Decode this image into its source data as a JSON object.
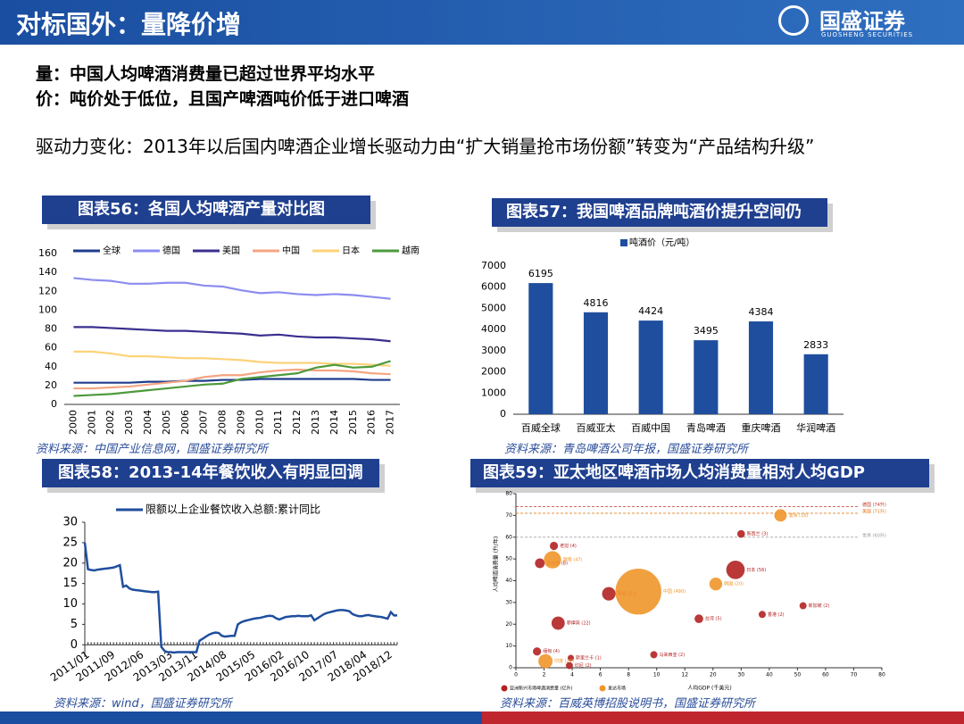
{
  "header": {
    "title": "对标国外：量降价增",
    "logo": "国盛证券",
    "logo_en": "GUOSHENG SECURITIES"
  },
  "points": [
    "量：中国人均啤酒消费量已超过世界平均水平",
    "价：吨价处于低位，且国产啤酒吨价低于进口啤酒",
    "驱动力变化：2013年以后国内啤酒企业增长驱动力由“扩大销量抢市场份额”转变为“产品结构升级”"
  ],
  "chart_data": [
    {
      "type": "line",
      "title": "图表56：各国人均啤酒产量对比图",
      "source": "资料来源：中国产业信息网，国盛证券研究所",
      "categories": [
        "2000",
        "2001",
        "2002",
        "2003",
        "2004",
        "2005",
        "2006",
        "2007",
        "2008",
        "2009",
        "2010",
        "2011",
        "2012",
        "2013",
        "2014",
        "2015",
        "2016",
        "2017"
      ],
      "ylim": [
        0,
        160
      ],
      "yticks": [
        0,
        20,
        40,
        60,
        80,
        100,
        120,
        140,
        160
      ],
      "series": [
        {
          "name": "全球",
          "color": "#1f3d8c",
          "values": [
            23,
            23,
            23,
            23,
            24,
            24,
            25,
            25,
            26,
            26,
            27,
            27,
            27,
            27,
            27,
            27,
            26,
            26
          ]
        },
        {
          "name": "德国",
          "color": "#8c8cf0",
          "values": [
            134,
            132,
            131,
            128,
            128,
            129,
            129,
            126,
            125,
            121,
            118,
            119,
            117,
            116,
            117,
            116,
            114,
            112
          ]
        },
        {
          "name": "美国",
          "color": "#3a2f8f",
          "values": [
            82,
            82,
            81,
            80,
            79,
            78,
            78,
            77,
            76,
            75,
            73,
            74,
            72,
            71,
            71,
            70,
            69,
            67
          ]
        },
        {
          "name": "中国",
          "color": "#f4a582",
          "values": [
            17,
            17,
            18,
            19,
            21,
            23,
            25,
            29,
            31,
            31,
            34,
            36,
            37,
            36,
            36,
            35,
            33,
            32
          ]
        },
        {
          "name": "日本",
          "color": "#fdd27a",
          "values": [
            56,
            56,
            54,
            51,
            51,
            50,
            49,
            49,
            48,
            47,
            45,
            44,
            44,
            44,
            43,
            43,
            42,
            41
          ]
        },
        {
          "name": "越南",
          "color": "#4d9a3c",
          "values": [
            9,
            10,
            11,
            13,
            15,
            17,
            19,
            21,
            22,
            27,
            29,
            31,
            33,
            39,
            42,
            39,
            40,
            46
          ]
        }
      ]
    },
    {
      "type": "bar",
      "title": "图表57：我国啤酒品牌吨酒价提升空间仍",
      "source": "资料来源：青岛啤酒公司年报，国盛证券研究所",
      "categories": [
        "百威全球",
        "百威亚太",
        "百威中国",
        "青岛啤酒",
        "重庆啤酒",
        "华润啤酒"
      ],
      "series": [
        {
          "name": "吨酒价（元/吨）",
          "color": "#1f4e9e",
          "values": [
            6195,
            4816,
            4424,
            3495,
            4384,
            2833
          ]
        }
      ],
      "ylim": [
        0,
        7000
      ],
      "yticks": [
        0,
        1000,
        2000,
        3000,
        4000,
        5000,
        6000,
        7000
      ]
    },
    {
      "type": "line",
      "title": "图表58：2013-14年餐饮收入有明显回调",
      "source": "资料来源：wind，国盛证券研究所",
      "categories": [
        "2011/01",
        null,
        null,
        null,
        null,
        null,
        null,
        null,
        "2011/09",
        null,
        null,
        null,
        null,
        null,
        null,
        null,
        null,
        "2012/06",
        null,
        null,
        null,
        null,
        null,
        null,
        null,
        null,
        "2013/03",
        null,
        null,
        null,
        null,
        null,
        null,
        null,
        "2013/11",
        null,
        null,
        null,
        null,
        null,
        null,
        null,
        null,
        "2014/08",
        null,
        null,
        null,
        null,
        null,
        null,
        null,
        null,
        "2015/05",
        null,
        null,
        null,
        null,
        null,
        null,
        null,
        null,
        "2016/02",
        null,
        null,
        null,
        null,
        null,
        null,
        null,
        "2016/10",
        null,
        null,
        null,
        null,
        null,
        null,
        null,
        null,
        "2017/07",
        null,
        null,
        null,
        null,
        null,
        null,
        null,
        null,
        "2018/04",
        null,
        null,
        null,
        null,
        null,
        null,
        null,
        "2018/12",
        null,
        null,
        null
      ],
      "ylim": [
        -3,
        30
      ],
      "yticks": [
        0,
        5,
        10,
        15,
        20,
        25,
        30
      ],
      "series": [
        {
          "name": "限额以上企业餐饮收入总额:累计同比",
          "color": "#1f4e9e",
          "values": [
            25,
            18.5,
            18.3,
            18.2,
            18.4,
            18.5,
            18.6,
            18.7,
            18.8,
            18.9,
            19.2,
            19.5,
            14.2,
            14.5,
            13.8,
            13.5,
            13.4,
            13.3,
            13.2,
            13.1,
            13.0,
            12.9,
            12.9,
            13.0,
            -0.5,
            -1.5,
            -1.8,
            -1.8,
            -1.9,
            -1.8,
            -1.8,
            -1.8,
            -1.8,
            -1.8,
            -1.8,
            -1.8,
            1.0,
            1.5,
            2.0,
            2.5,
            2.8,
            3.0,
            2.9,
            2.2,
            2.0,
            2.1,
            2.2,
            2.2,
            5.0,
            5.5,
            5.8,
            6.0,
            6.2,
            6.4,
            6.5,
            6.6,
            6.8,
            7.0,
            7.1,
            7.0,
            6.5,
            6.2,
            6.5,
            6.8,
            6.9,
            7.0,
            7.0,
            7.1,
            7.0,
            7.0,
            7.0,
            7.2,
            6.0,
            6.5,
            7.0,
            7.5,
            7.8,
            8.0,
            8.2,
            8.4,
            8.5,
            8.5,
            8.4,
            8.2,
            7.5,
            7.2,
            7.0,
            7.0,
            7.2,
            7.3,
            7.1,
            7.0,
            6.9,
            6.8,
            6.6,
            6.4,
            8.0,
            7.2,
            7.2
          ]
        }
      ]
    },
    {
      "type": "bubble",
      "title": "图表59：亚太地区啤酒市场人均消费量相对人均GDP",
      "source": "资料来源：百威英博招股说明书，国盛证券研究所",
      "x_label": "人均GDP (千美元)",
      "y_label": "人均啤酒消费量 (升/年)",
      "xlim": [
        0,
        80
      ],
      "xticks": [
        0,
        2,
        4,
        6,
        8,
        10,
        12,
        20,
        30,
        40,
        50,
        60,
        70,
        80
      ],
      "ylim": [
        0,
        80
      ],
      "yticks": [
        0,
        10,
        20,
        30,
        40,
        50,
        60,
        70,
        80
      ],
      "ref_lines": [
        {
          "label": "德国 (74升)",
          "value": 74,
          "color": "#c0392b"
        },
        {
          "label": "美国 (71升)",
          "value": 71,
          "color": "#e67e22"
        },
        {
          "label": "世界 (60升)",
          "value": 60,
          "color": "#999999"
        }
      ],
      "series": [
        {
          "name": "亚洲新兴市场啤酒消费量 (亿升)",
          "color": "#b22222",
          "points": [
            {
              "label": "柬埔寨 (8)",
              "x": 1.7,
              "y": 48,
              "size": 8
            },
            {
              "label": "老挝 (4)",
              "x": 2.7,
              "y": 56,
              "size": 4
            },
            {
              "label": "菲律宾 (22)",
              "x": 3.0,
              "y": 20.5,
              "size": 22
            },
            {
              "label": "泰国 (23)",
              "x": 6.6,
              "y": 34,
              "size": 23
            },
            {
              "label": "日本 (56)",
              "x": 28,
              "y": 45,
              "size": 56
            },
            {
              "label": "新西兰 (3)",
              "x": 30,
              "y": 61.5,
              "size": 3
            },
            {
              "label": "台湾 (5)",
              "x": 16,
              "y": 22.5,
              "size": 5
            },
            {
              "label": "香港 (2)",
              "x": 37.5,
              "y": 24.5,
              "size": 2
            },
            {
              "label": "新加坡 (2)",
              "x": 52,
              "y": 28.5,
              "size": 2
            },
            {
              "label": "马来西亚 (2)",
              "x": 9.8,
              "y": 6,
              "size": 2
            },
            {
              "label": "斯里兰卡 (1)",
              "x": 3.9,
              "y": 4.5,
              "size": 1
            },
            {
              "label": "印尼 (2)",
              "x": 3.8,
              "y": 1,
              "size": 2
            },
            {
              "label": "缅甸 (4)",
              "x": 1.5,
              "y": 7.5,
              "size": 4
            }
          ]
        },
        {
          "name": "发达市场",
          "color": "#f0962a",
          "points": [
            {
              "label": "越南 (47)",
              "x": 2.6,
              "y": 49.6,
              "size": 47
            },
            {
              "label": "中国 (490)",
              "x": 8.7,
              "y": 35,
              "size": 490
            },
            {
              "label": "韩国 (20)",
              "x": 21,
              "y": 38.5,
              "size": 20
            },
            {
              "label": "澳洲 (18)",
              "x": 44,
              "y": 70,
              "size": 18
            },
            {
              "label": "印度 (27)",
              "x": 2.1,
              "y": 3,
              "size": 27
            }
          ]
        }
      ]
    }
  ]
}
